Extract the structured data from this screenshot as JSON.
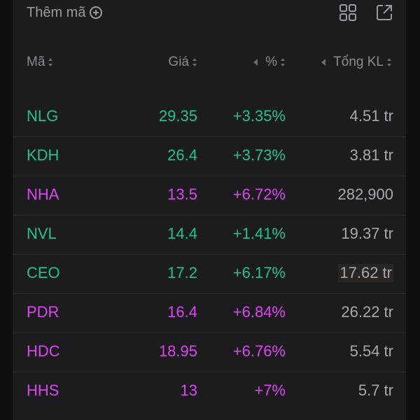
{
  "toolbar": {
    "add_label": "Thêm mã",
    "add_icon": "plus-circle-icon",
    "layout_icon": "grid-layout-icon",
    "open_icon": "external-link-icon"
  },
  "header": {
    "ma": "Mã",
    "gia": "Giá",
    "pct": "%",
    "kl": "Tổng KL"
  },
  "colors": {
    "up": "#22c08a",
    "ceiling": "#d946ef",
    "neutral": "#a8a8ad"
  },
  "rows": [
    {
      "ma": "NLG",
      "gia": "29.35",
      "pct": "+3.35%",
      "kl": "4.51 tr",
      "status": "up"
    },
    {
      "ma": "KDH",
      "gia": "26.4",
      "pct": "+3.73%",
      "kl": "3.81 tr",
      "status": "up"
    },
    {
      "ma": "NHA",
      "gia": "13.5",
      "pct": "+6.72%",
      "kl": "282,900",
      "status": "ceiling"
    },
    {
      "ma": "NVL",
      "gia": "14.4",
      "pct": "+1.41%",
      "kl": "19.37 tr",
      "status": "up"
    },
    {
      "ma": "CEO",
      "gia": "17.2",
      "pct": "+6.17%",
      "kl": "17.62 tr",
      "status": "up"
    },
    {
      "ma": "PDR",
      "gia": "16.4",
      "pct": "+6.84%",
      "kl": "26.22 tr",
      "status": "ceiling"
    },
    {
      "ma": "HDC",
      "gia": "18.95",
      "pct": "+6.76%",
      "kl": "5.54 tr",
      "status": "ceiling"
    },
    {
      "ma": "HHS",
      "gia": "13",
      "pct": "+7%",
      "kl": "5.7 tr",
      "status": "ceiling"
    }
  ]
}
